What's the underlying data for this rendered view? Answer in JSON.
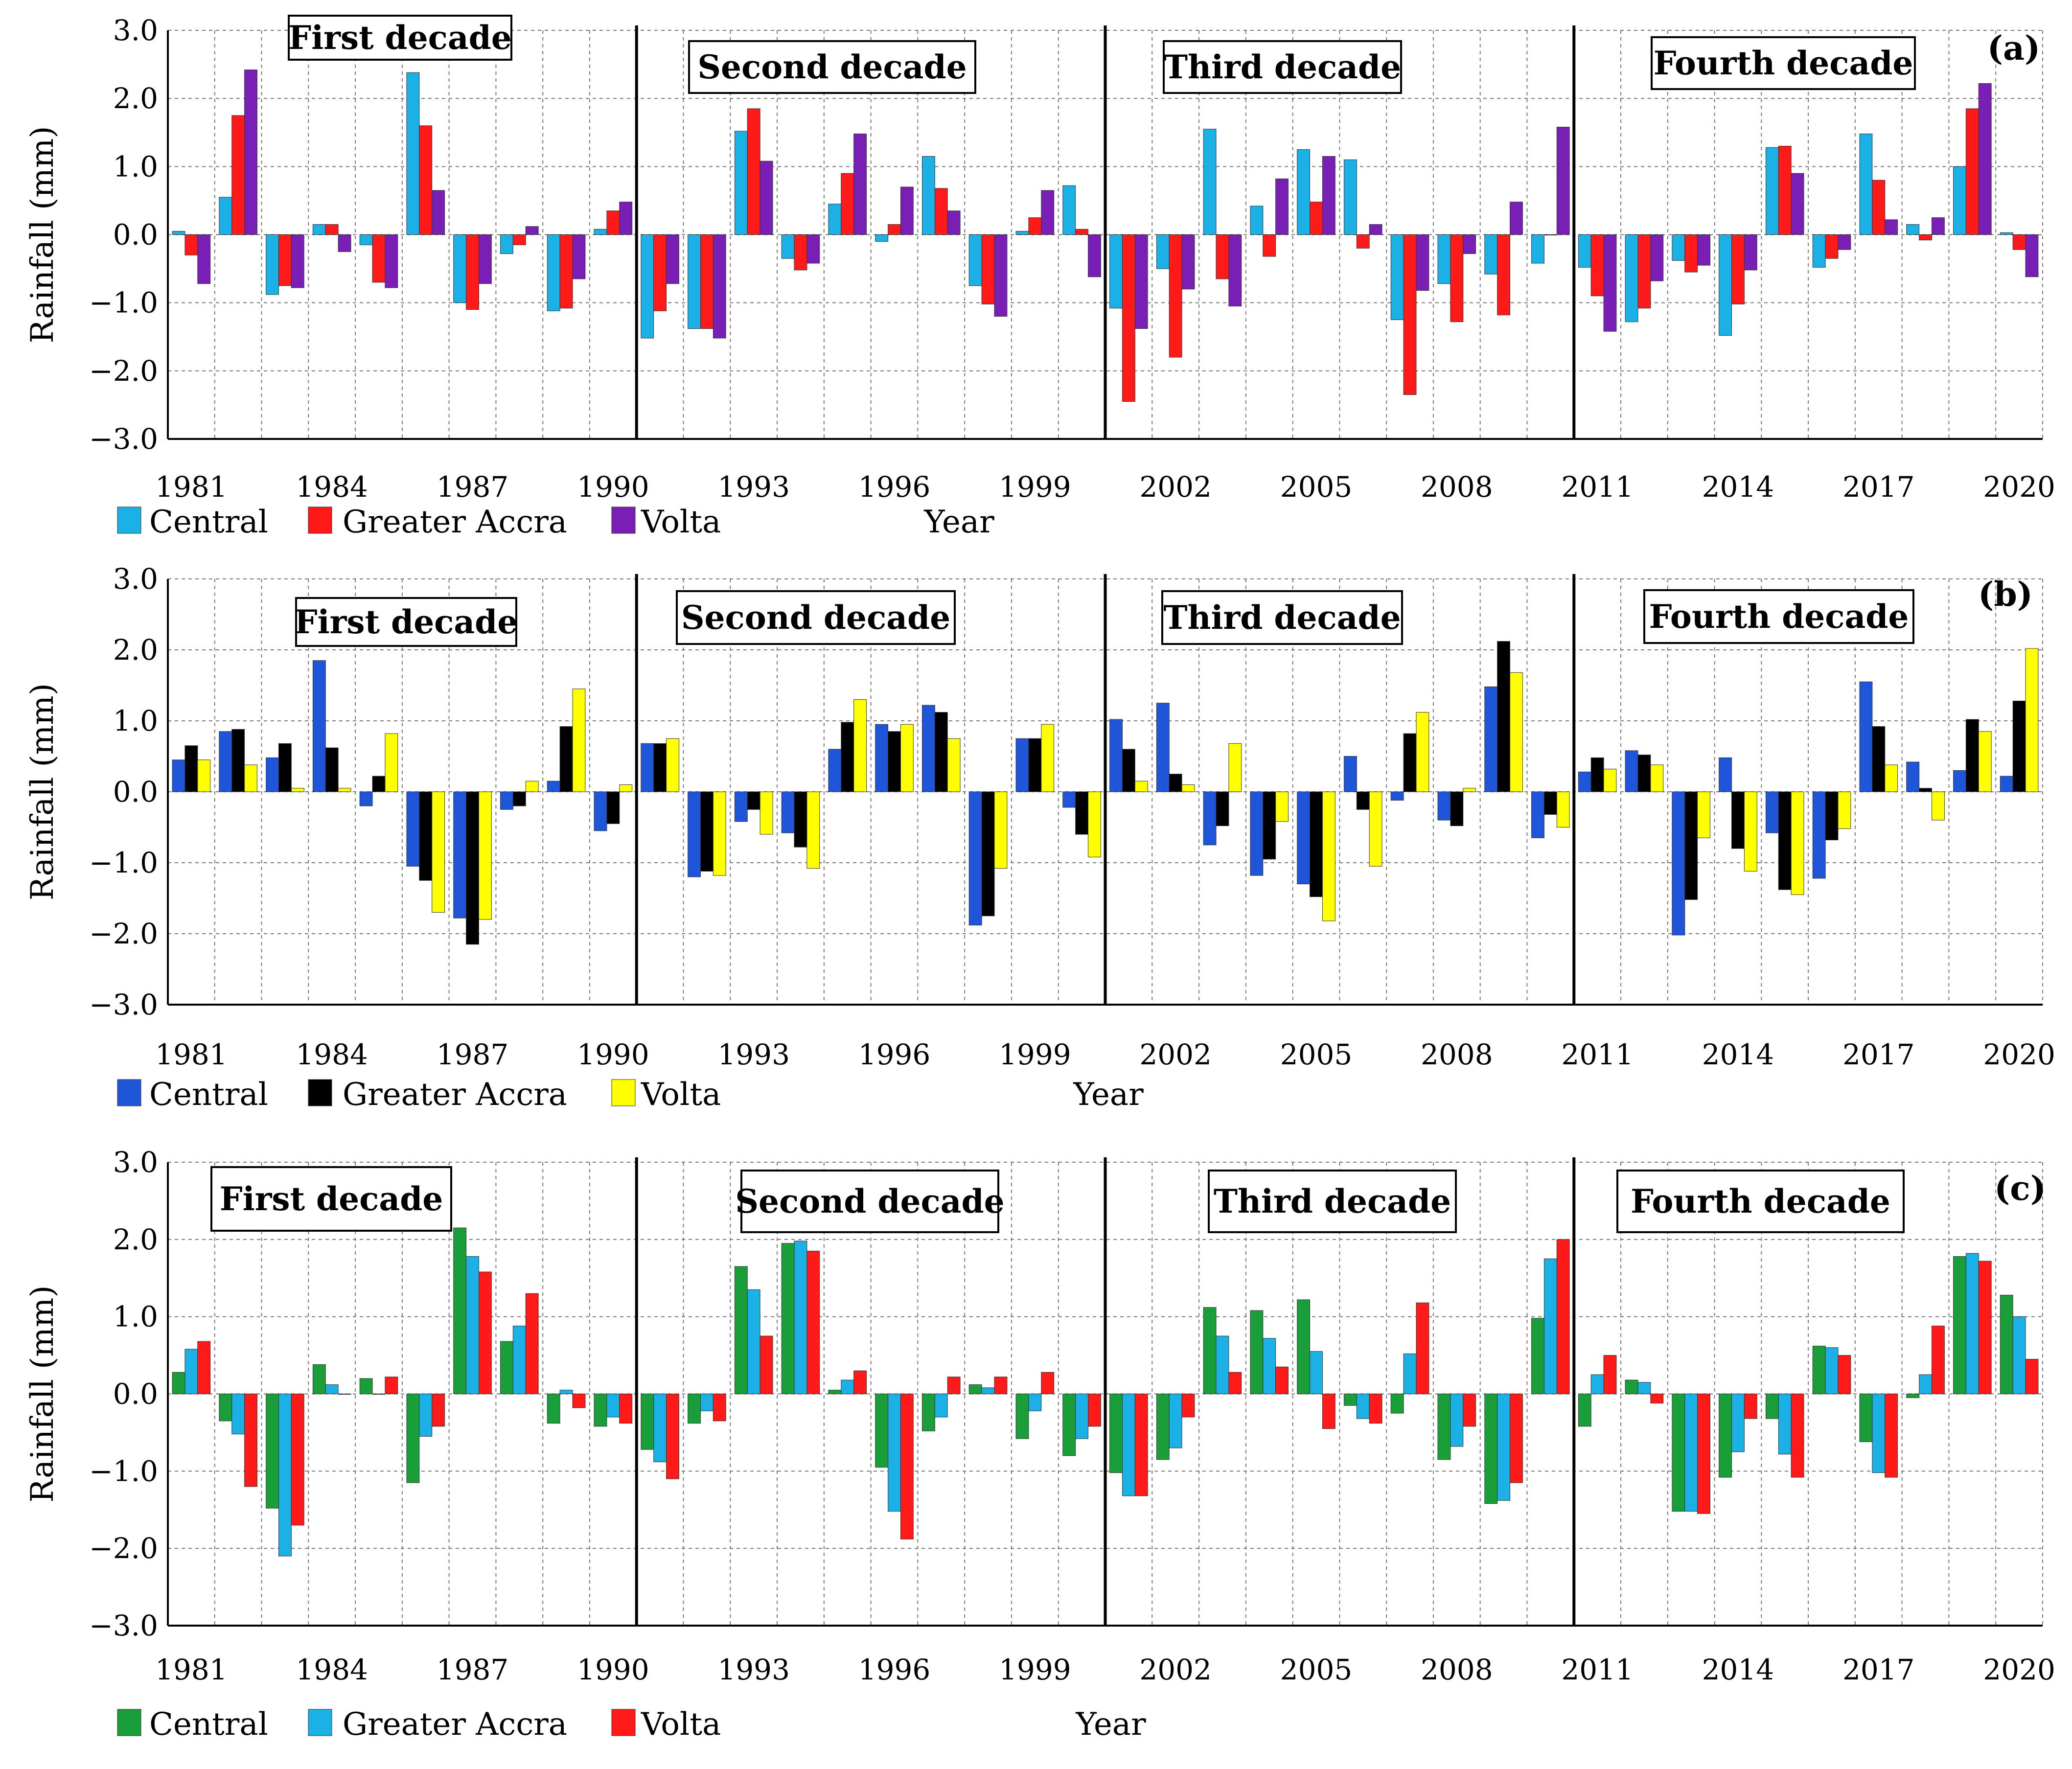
{
  "chart_data": [
    {
      "type": "bar",
      "panel_label": "(a)",
      "ylabel": "Rainfall (mm)",
      "xlabel": "Year",
      "ylim": [
        -3.0,
        3.0
      ],
      "yticks": [
        "3.0",
        "2.0",
        "1.0",
        "0.0",
        "−1.0",
        "−2.0",
        "−3.0"
      ],
      "categories": [
        "1981",
        "1982",
        "1983",
        "1984",
        "1985",
        "1986",
        "1987",
        "1988",
        "1989",
        "1990",
        "1991",
        "1992",
        "1993",
        "1994",
        "1995",
        "1996",
        "1997",
        "1998",
        "1999",
        "2000",
        "2001",
        "2002",
        "2003",
        "2004",
        "2005",
        "2006",
        "2007",
        "2008",
        "2009",
        "2010",
        "2011",
        "2012",
        "2013",
        "2014",
        "2015",
        "2016",
        "2017",
        "2018",
        "2019",
        "2020"
      ],
      "xtick_labels": [
        "1981",
        "1984",
        "1987",
        "1990",
        "1993",
        "1996",
        "1999",
        "2002",
        "2005",
        "2008",
        "2011",
        "2014",
        "2017",
        "2020"
      ],
      "decade_labels": [
        "First decade",
        "Second decade",
        "Third decade",
        "Fourth decade"
      ],
      "grid": true,
      "series": [
        {
          "name": "Central",
          "color": "#1bb0e6",
          "values": [
            0.05,
            0.55,
            -0.88,
            0.15,
            -0.15,
            2.38,
            -1.0,
            -0.28,
            -1.12,
            0.08,
            -1.52,
            -1.38,
            1.52,
            -0.35,
            0.45,
            -0.1,
            1.15,
            -0.75,
            0.05,
            0.72,
            -1.08,
            -0.5,
            1.55,
            0.42,
            1.25,
            1.1,
            -1.25,
            -0.72,
            -0.58,
            -0.42,
            -0.48,
            -1.28,
            -0.38,
            -1.48,
            1.28,
            -0.48,
            1.48,
            0.15,
            1.0,
            0.03
          ]
        },
        {
          "name": "Greater Accra",
          "color": "#ff1a1a",
          "values": [
            -0.3,
            1.75,
            -0.75,
            0.15,
            -0.7,
            1.6,
            -1.1,
            -0.15,
            -1.08,
            0.35,
            -1.12,
            -1.38,
            1.85,
            -0.52,
            0.9,
            0.15,
            0.68,
            -1.02,
            0.25,
            0.08,
            -2.45,
            -1.8,
            -0.65,
            -0.32,
            0.48,
            -0.2,
            -2.35,
            -1.28,
            -1.18,
            0.0,
            -0.9,
            -1.08,
            -0.55,
            -1.02,
            1.3,
            -0.35,
            0.8,
            -0.08,
            1.85,
            -0.22
          ]
        },
        {
          "name": "Volta",
          "color": "#7a1fb5",
          "values": [
            -0.72,
            2.42,
            -0.78,
            -0.25,
            -0.78,
            0.65,
            -0.72,
            0.12,
            -0.65,
            0.48,
            -0.72,
            -1.52,
            1.08,
            -0.42,
            1.48,
            0.7,
            0.35,
            -1.2,
            0.65,
            -0.62,
            -1.38,
            -0.8,
            -1.05,
            0.82,
            1.15,
            0.15,
            -0.82,
            -0.28,
            0.48,
            1.58,
            -1.42,
            -0.68,
            -0.45,
            -0.52,
            0.9,
            -0.22,
            0.22,
            0.25,
            2.22,
            -0.62
          ]
        }
      ]
    },
    {
      "type": "bar",
      "panel_label": "(b)",
      "ylabel": "Rainfall (mm)",
      "xlabel": "Year",
      "ylim": [
        -3.0,
        3.0
      ],
      "yticks": [
        "3.0",
        "2.0",
        "1.0",
        "0.0",
        "−1.0",
        "−2.0",
        "−3.0"
      ],
      "categories": [
        "1981",
        "1982",
        "1983",
        "1984",
        "1985",
        "1986",
        "1987",
        "1988",
        "1989",
        "1990",
        "1991",
        "1992",
        "1993",
        "1994",
        "1995",
        "1996",
        "1997",
        "1998",
        "1999",
        "2000",
        "2001",
        "2002",
        "2003",
        "2004",
        "2005",
        "2006",
        "2007",
        "2008",
        "2009",
        "2010",
        "2011",
        "2012",
        "2013",
        "2014",
        "2015",
        "2016",
        "2017",
        "2018",
        "2019",
        "2020"
      ],
      "xtick_labels": [
        "1981",
        "1984",
        "1987",
        "1990",
        "1993",
        "1996",
        "1999",
        "2002",
        "2005",
        "2008",
        "2011",
        "2014",
        "2017",
        "2020"
      ],
      "decade_labels": [
        "First decade",
        "Second decade",
        "Third decade",
        "Fourth decade"
      ],
      "grid": true,
      "series": [
        {
          "name": "Central",
          "color": "#1f55d8",
          "values": [
            0.45,
            0.85,
            0.48,
            1.85,
            -0.2,
            -1.05,
            -1.78,
            -0.25,
            0.15,
            -0.55,
            0.68,
            -1.2,
            -0.42,
            -0.58,
            0.6,
            0.95,
            1.22,
            -1.88,
            0.75,
            -0.22,
            1.02,
            1.25,
            -0.75,
            -1.18,
            -1.3,
            0.5,
            -0.12,
            -0.4,
            1.48,
            -0.65,
            0.28,
            0.58,
            -2.02,
            0.48,
            -0.58,
            -1.22,
            1.55,
            0.42,
            0.3,
            0.22
          ]
        },
        {
          "name": "Greater Accra",
          "color": "#000000",
          "values": [
            0.65,
            0.88,
            0.68,
            0.62,
            0.22,
            -1.25,
            -2.15,
            -0.2,
            0.92,
            -0.45,
            0.68,
            -1.12,
            -0.25,
            -0.78,
            0.98,
            0.85,
            1.12,
            -1.75,
            0.75,
            -0.6,
            0.6,
            0.25,
            -0.48,
            -0.95,
            -1.48,
            -0.25,
            0.82,
            -0.48,
            2.12,
            -0.32,
            0.48,
            0.52,
            -1.52,
            -0.8,
            -1.38,
            -0.68,
            0.92,
            0.05,
            1.02,
            1.28
          ]
        },
        {
          "name": "Volta",
          "color": "#ffff00",
          "values": [
            0.45,
            0.38,
            0.05,
            0.05,
            0.82,
            -1.7,
            -1.8,
            0.15,
            1.45,
            0.1,
            0.75,
            -1.18,
            -0.6,
            -1.08,
            1.3,
            0.95,
            0.75,
            -1.08,
            0.95,
            -0.92,
            0.15,
            0.1,
            0.68,
            -0.42,
            -1.82,
            -1.05,
            1.12,
            0.05,
            1.68,
            -0.5,
            0.32,
            0.38,
            -0.65,
            -1.12,
            -1.45,
            -0.52,
            0.38,
            -0.4,
            0.85,
            2.02
          ]
        }
      ]
    },
    {
      "type": "bar",
      "panel_label": "(c)",
      "ylabel": "Rainfall (mm)",
      "xlabel": "Year",
      "ylim": [
        -3.0,
        3.0
      ],
      "yticks": [
        "3.0",
        "2.0",
        "1.0",
        "0.0",
        "−1.0",
        "−2.0",
        "−3.0"
      ],
      "categories": [
        "1981",
        "1982",
        "1983",
        "1984",
        "1985",
        "1986",
        "1987",
        "1988",
        "1989",
        "1990",
        "1991",
        "1992",
        "1993",
        "1994",
        "1995",
        "1996",
        "1997",
        "1998",
        "1999",
        "2000",
        "2001",
        "2002",
        "2003",
        "2004",
        "2005",
        "2006",
        "2007",
        "2008",
        "2009",
        "2010",
        "2011",
        "2012",
        "2013",
        "2014",
        "2015",
        "2016",
        "2017",
        "2018",
        "2019",
        "2020"
      ],
      "xtick_labels": [
        "1981",
        "1984",
        "1987",
        "1990",
        "1993",
        "1996",
        "1999",
        "2002",
        "2005",
        "2008",
        "2011",
        "2014",
        "2017",
        "2020"
      ],
      "decade_labels": [
        "First decade",
        "Second decade",
        "Third decade",
        "Fourth decade"
      ],
      "grid": true,
      "series": [
        {
          "name": "Central",
          "color": "#1a9e3a",
          "values": [
            0.28,
            -0.35,
            -1.48,
            0.38,
            0.2,
            -1.15,
            2.15,
            0.68,
            -0.38,
            -0.42,
            -0.72,
            -0.38,
            1.65,
            1.95,
            0.05,
            -0.95,
            -0.48,
            0.12,
            -0.58,
            -0.8,
            -1.02,
            -0.85,
            1.12,
            1.08,
            1.22,
            -0.15,
            -0.25,
            -0.85,
            -1.42,
            0.98,
            -0.42,
            0.18,
            -1.52,
            -1.08,
            -0.32,
            0.62,
            -0.62,
            -0.05,
            1.78,
            1.28
          ]
        },
        {
          "name": "Greater Accra",
          "color": "#1bb0e6",
          "values": [
            0.58,
            -0.52,
            -2.1,
            0.12,
            0.0,
            -0.55,
            1.78,
            0.88,
            0.05,
            -0.3,
            -0.88,
            -0.22,
            1.35,
            1.98,
            0.18,
            -1.52,
            -0.3,
            0.08,
            -0.22,
            -0.58,
            -1.32,
            -0.7,
            0.75,
            0.72,
            0.55,
            -0.32,
            0.52,
            -0.68,
            -1.38,
            1.75,
            0.25,
            0.15,
            -1.52,
            -0.75,
            -0.78,
            0.6,
            -1.02,
            0.25,
            1.82,
            1.0
          ]
        },
        {
          "name": "Volta",
          "color": "#ff1a1a",
          "values": [
            0.68,
            -1.2,
            -1.7,
            0.0,
            0.22,
            -0.42,
            1.58,
            1.3,
            -0.18,
            -0.38,
            -1.1,
            -0.35,
            0.75,
            1.85,
            0.3,
            -1.88,
            0.22,
            0.22,
            0.28,
            -0.42,
            -1.32,
            -0.3,
            0.28,
            0.35,
            -0.45,
            -0.38,
            1.18,
            -0.42,
            -1.15,
            2.0,
            0.5,
            -0.12,
            -1.55,
            -0.32,
            -1.08,
            0.5,
            -1.08,
            0.88,
            1.72,
            0.45
          ]
        }
      ]
    }
  ]
}
